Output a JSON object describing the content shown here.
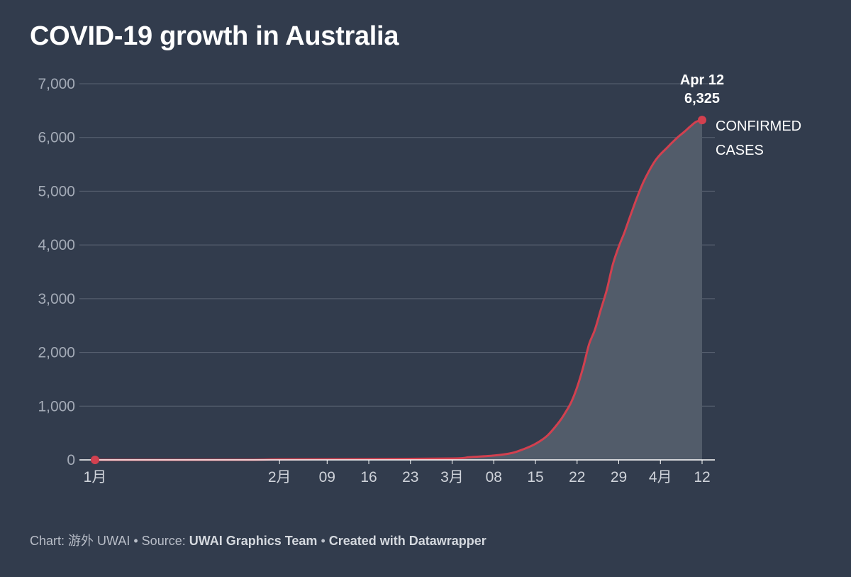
{
  "chart_data": {
    "type": "area",
    "title": "COVID-19 growth in Australia",
    "series": [
      {
        "name": "CONFIRMED CASES",
        "color": "#d2404f",
        "points": [
          {
            "x": "2020-01-01",
            "y": 0
          },
          {
            "x": "2020-01-25",
            "y": 1
          },
          {
            "x": "2020-02-01",
            "y": 9
          },
          {
            "x": "2020-02-15",
            "y": 15
          },
          {
            "x": "2020-03-01",
            "y": 26
          },
          {
            "x": "2020-03-04",
            "y": 52
          },
          {
            "x": "2020-03-08",
            "y": 80
          },
          {
            "x": "2020-03-11",
            "y": 127
          },
          {
            "x": "2020-03-13",
            "y": 200
          },
          {
            "x": "2020-03-15",
            "y": 298
          },
          {
            "x": "2020-03-17",
            "y": 452
          },
          {
            "x": "2020-03-19",
            "y": 709
          },
          {
            "x": "2020-03-20",
            "y": 876
          },
          {
            "x": "2020-03-21",
            "y": 1071
          },
          {
            "x": "2020-03-22",
            "y": 1352
          },
          {
            "x": "2020-03-23",
            "y": 1717
          },
          {
            "x": "2020-03-24",
            "y": 2146
          },
          {
            "x": "2020-03-25",
            "y": 2423
          },
          {
            "x": "2020-03-26",
            "y": 2799
          },
          {
            "x": "2020-03-27",
            "y": 3166
          },
          {
            "x": "2020-03-28",
            "y": 3635
          },
          {
            "x": "2020-03-29",
            "y": 3966
          },
          {
            "x": "2020-03-30",
            "y": 4245
          },
          {
            "x": "2020-03-31",
            "y": 4559
          },
          {
            "x": "2020-04-01",
            "y": 4862
          },
          {
            "x": "2020-04-02",
            "y": 5136
          },
          {
            "x": "2020-04-03",
            "y": 5358
          },
          {
            "x": "2020-04-04",
            "y": 5548
          },
          {
            "x": "2020-04-05",
            "y": 5687
          },
          {
            "x": "2020-04-06",
            "y": 5795
          },
          {
            "x": "2020-04-07",
            "y": 5908
          },
          {
            "x": "2020-04-08",
            "y": 6013
          },
          {
            "x": "2020-04-09",
            "y": 6104
          },
          {
            "x": "2020-04-10",
            "y": 6203
          },
          {
            "x": "2020-04-11",
            "y": 6292
          },
          {
            "x": "2020-04-12",
            "y": 6325
          }
        ]
      }
    ],
    "x_ticks": [
      {
        "date": "2020-01-01",
        "label": "1月"
      },
      {
        "date": "2020-02-01",
        "label": "2月"
      },
      {
        "date": "2020-02-09",
        "label": "09"
      },
      {
        "date": "2020-02-16",
        "label": "16"
      },
      {
        "date": "2020-02-23",
        "label": "23"
      },
      {
        "date": "2020-03-01",
        "label": "3月"
      },
      {
        "date": "2020-03-08",
        "label": "08"
      },
      {
        "date": "2020-03-15",
        "label": "15"
      },
      {
        "date": "2020-03-22",
        "label": "22"
      },
      {
        "date": "2020-03-29",
        "label": "29"
      },
      {
        "date": "2020-04-05",
        "label": "4月"
      },
      {
        "date": "2020-04-12",
        "label": "12"
      }
    ],
    "y_ticks": [
      {
        "value": 0,
        "label": "0"
      },
      {
        "value": 1000,
        "label": "1,000"
      },
      {
        "value": 2000,
        "label": "2,000"
      },
      {
        "value": 3000,
        "label": "3,000"
      },
      {
        "value": 4000,
        "label": "4,000"
      },
      {
        "value": 5000,
        "label": "5,000"
      },
      {
        "value": 6000,
        "label": "6,000"
      },
      {
        "value": 7000,
        "label": "7,000"
      }
    ],
    "ylim": [
      0,
      7000
    ],
    "xlim": [
      "2020-01-01",
      "2020-04-12"
    ],
    "grid": "horizontal",
    "annotation": {
      "date_label": "Apr 12",
      "value_label": "6,325"
    },
    "series_label_lines": [
      "CONFIRMED",
      "CASES"
    ],
    "colors": {
      "background": "#323c4d",
      "line": "#d2404f",
      "area": "#525c6a",
      "grid": "#5b6474"
    }
  },
  "footer": {
    "chart_prefix": "Chart: ",
    "chart_author": "游外 UWAI",
    "separator": " • ",
    "source_prefix": "Source: ",
    "source_name": "UWAI Graphics Team",
    "created_with": "Created with Datawrapper"
  }
}
